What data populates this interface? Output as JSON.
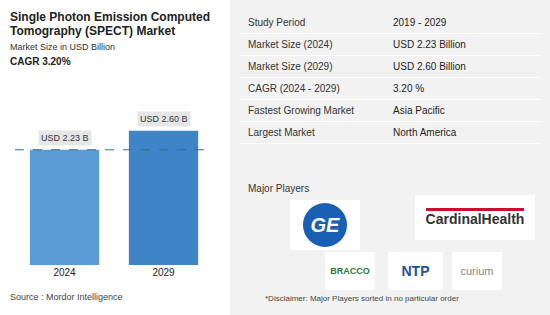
{
  "chart_data": {
    "type": "bar",
    "title": "Single Photon Emission Computed Tomography (SPECT) Market",
    "subtitle": "Market Size in USD Billion",
    "annotations": [
      "CAGR 3.20%"
    ],
    "categories": [
      "2024",
      "2029"
    ],
    "values": [
      2.23,
      2.6
    ],
    "value_labels": [
      "USD 2.23 B",
      "USD 2.60 B"
    ],
    "colors": [
      "#5b9bd6",
      "#3e84c6"
    ],
    "ylim": [
      0,
      3
    ],
    "data_labels": true,
    "tick_labels": "x",
    "grid": false
  },
  "source": "Source : Mordor Intelligence",
  "table": {
    "rows": [
      [
        "Study Period",
        "2019 - 2029"
      ],
      [
        "Market Size (2024)",
        "USD 2.23 Billion"
      ],
      [
        "Market Size (2029)",
        "USD 2.60 Billion"
      ],
      [
        "CAGR (2024 - 2029)",
        "3.20 %"
      ],
      [
        "Fastest Growing Market",
        "Asia Pacific"
      ],
      [
        "Largest Market",
        "North America"
      ]
    ]
  },
  "major_players": {
    "title": "Major Players",
    "logos": [
      "GE",
      "CardinalHealth",
      "BRACCO",
      "NTP",
      "curium"
    ]
  },
  "disclaimer": "*Disclaimer: Major Players sorted in no particular order"
}
